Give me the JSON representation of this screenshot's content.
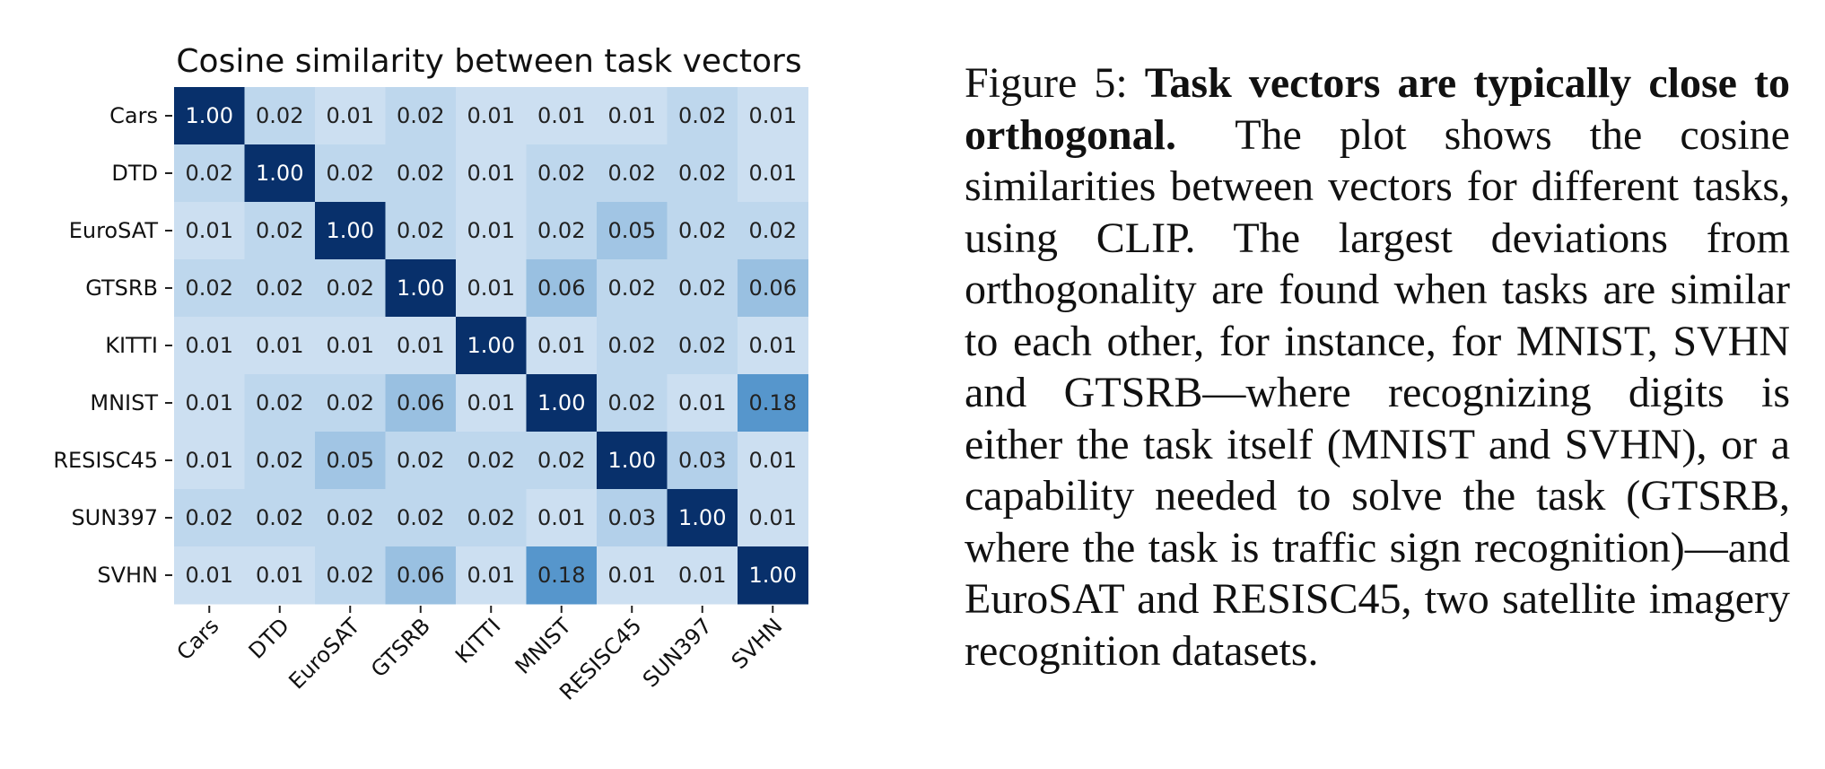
{
  "chart_data": {
    "type": "heatmap",
    "title": "Cosine similarity between task vectors",
    "row_labels": [
      "Cars",
      "DTD",
      "EuroSAT",
      "GTSRB",
      "KITTI",
      "MNIST",
      "RESISC45",
      "SUN397",
      "SVHN"
    ],
    "col_labels": [
      "Cars",
      "DTD",
      "EuroSAT",
      "GTSRB",
      "KITTI",
      "MNIST",
      "RESISC45",
      "SUN397",
      "SVHN"
    ],
    "values": [
      [
        1.0,
        0.02,
        0.01,
        0.02,
        0.01,
        0.01,
        0.01,
        0.02,
        0.01
      ],
      [
        0.02,
        1.0,
        0.02,
        0.02,
        0.01,
        0.02,
        0.02,
        0.02,
        0.01
      ],
      [
        0.01,
        0.02,
        1.0,
        0.02,
        0.01,
        0.02,
        0.05,
        0.02,
        0.02
      ],
      [
        0.02,
        0.02,
        0.02,
        1.0,
        0.01,
        0.06,
        0.02,
        0.02,
        0.06
      ],
      [
        0.01,
        0.01,
        0.01,
        0.01,
        1.0,
        0.01,
        0.02,
        0.02,
        0.01
      ],
      [
        0.01,
        0.02,
        0.02,
        0.06,
        0.01,
        1.0,
        0.02,
        0.01,
        0.18
      ],
      [
        0.01,
        0.02,
        0.05,
        0.02,
        0.02,
        0.02,
        1.0,
        0.03,
        0.01
      ],
      [
        0.02,
        0.02,
        0.02,
        0.02,
        0.02,
        0.01,
        0.03,
        1.0,
        0.01
      ],
      [
        0.01,
        0.01,
        0.02,
        0.06,
        0.01,
        0.18,
        0.01,
        0.01,
        1.0
      ]
    ],
    "colormap": "Blues",
    "value_format": "0.00",
    "colorbar": false
  },
  "caption": {
    "label": "Figure 5:",
    "bold": "Task vectors are typically close to orthogonal.",
    "body": "The plot shows the co­sine similarities between vectors for differ­ent tasks, using CLIP. The largest deviations from orthogonality are found when tasks are similar to each other, for instance, for MNIST, SVHN and GTSRB—where recog­nizing digits is either the task itself (MNIST and SVHN), or a capability needed to solve the task (GTSRB, where the task is traffic sign recognition)—and EuroSAT and RE­SISC45, two satellite imagery recognition datasets."
  },
  "colors": {
    "low": "#eaf2fb",
    "mid": "#3f88c5",
    "high": "#08306b",
    "text_dark": "#222222",
    "text_light": "#ffffff"
  }
}
